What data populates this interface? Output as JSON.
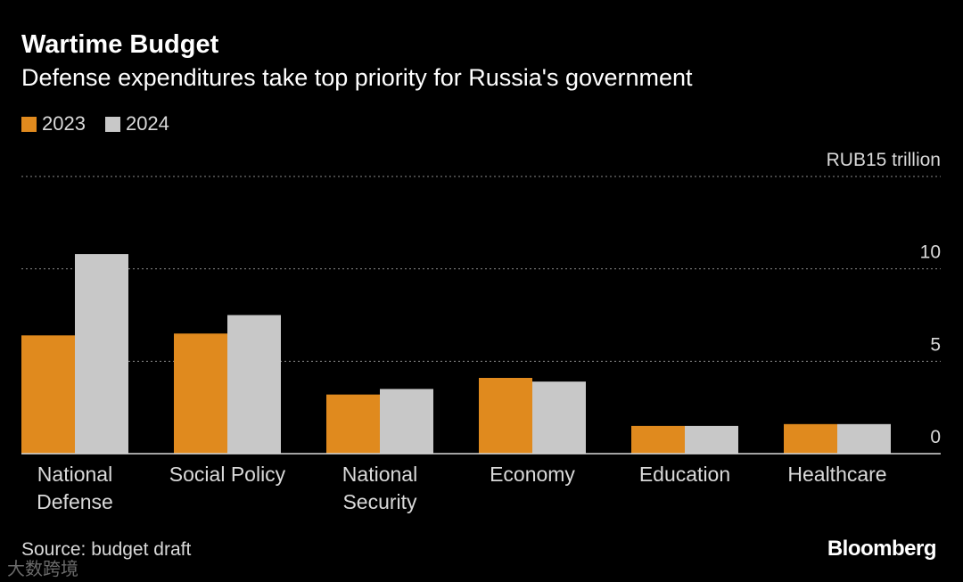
{
  "header": {
    "title": "Wartime Budget",
    "subtitle": "Defense expenditures take top priority for Russia's government"
  },
  "footer": {
    "source": "Source: budget draft",
    "brand": "Bloomberg",
    "watermark": "大数跨境"
  },
  "colors": {
    "series_2023": "#e08a1e",
    "series_2024": "#c8c8c8",
    "background": "#000000",
    "grid": "#8a8a8a"
  },
  "chart_data": {
    "type": "bar",
    "title": "Wartime Budget",
    "subtitle": "Defense expenditures take top priority for Russia's government",
    "categories": [
      [
        "National",
        "Defense"
      ],
      [
        "Social Policy"
      ],
      [
        "National",
        "Security"
      ],
      [
        "Economy"
      ],
      [
        "Education"
      ],
      [
        "Healthcare"
      ]
    ],
    "series": [
      {
        "name": "2023",
        "values": [
          6.4,
          6.5,
          3.2,
          4.1,
          1.5,
          1.6
        ]
      },
      {
        "name": "2024",
        "values": [
          10.8,
          7.5,
          3.5,
          3.9,
          1.5,
          1.6
        ]
      }
    ],
    "y_axis": {
      "ylim": [
        0,
        15
      ],
      "ticks": [
        {
          "value": 15,
          "label": "RUB15 trillion"
        },
        {
          "value": 10,
          "label": "10"
        },
        {
          "value": 5,
          "label": "5"
        },
        {
          "value": 0,
          "label": "0"
        }
      ],
      "position": "right"
    },
    "grid": true,
    "legend_position": "top-left"
  }
}
